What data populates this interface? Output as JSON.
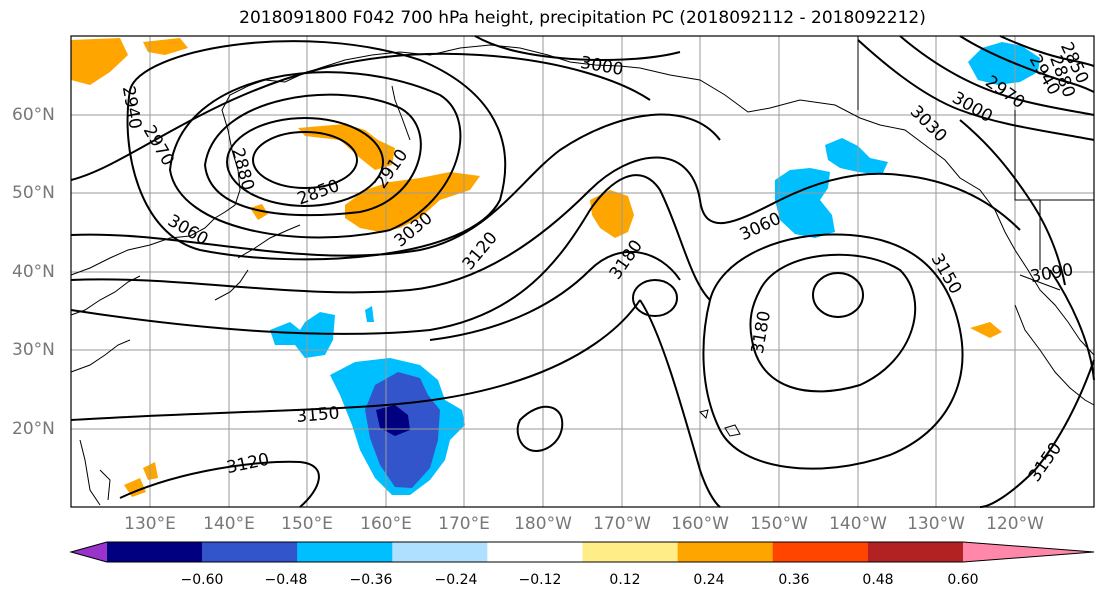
{
  "title": "2018091800 F042 700 hPa height, precipitation PC (2018092112 - 2018092212)",
  "lat_labels": [
    "60°N",
    "50°N",
    "40°N",
    "30°N",
    "20°N"
  ],
  "lon_labels": [
    "130°E",
    "140°E",
    "150°E",
    "160°E",
    "170°E",
    "180°W",
    "170°W",
    "160°W",
    "150°W",
    "140°W",
    "130°W",
    "120°W"
  ],
  "contour_labels": [
    "2940",
    "2970",
    "2880",
    "2850",
    "2910",
    "3000",
    "3030",
    "3060",
    "3120",
    "3180",
    "3060",
    "3030",
    "3000",
    "2970",
    "2940",
    "2880",
    "2850",
    "3150",
    "3090",
    "3180",
    "3150",
    "3120",
    "3150"
  ],
  "colorbar": {
    "ticks": [
      "−0.60",
      "−0.48",
      "−0.36",
      "−0.24",
      "−0.12",
      "0.12",
      "0.24",
      "0.36",
      "0.48",
      "0.60"
    ],
    "colors": [
      "#9933cc",
      "#000080",
      "#3355cc",
      "#00bfff",
      "#b0e0ff",
      "#ffffff",
      "#ffee88",
      "#ffa500",
      "#ff4500",
      "#b22222",
      "#ff88aa"
    ]
  }
}
